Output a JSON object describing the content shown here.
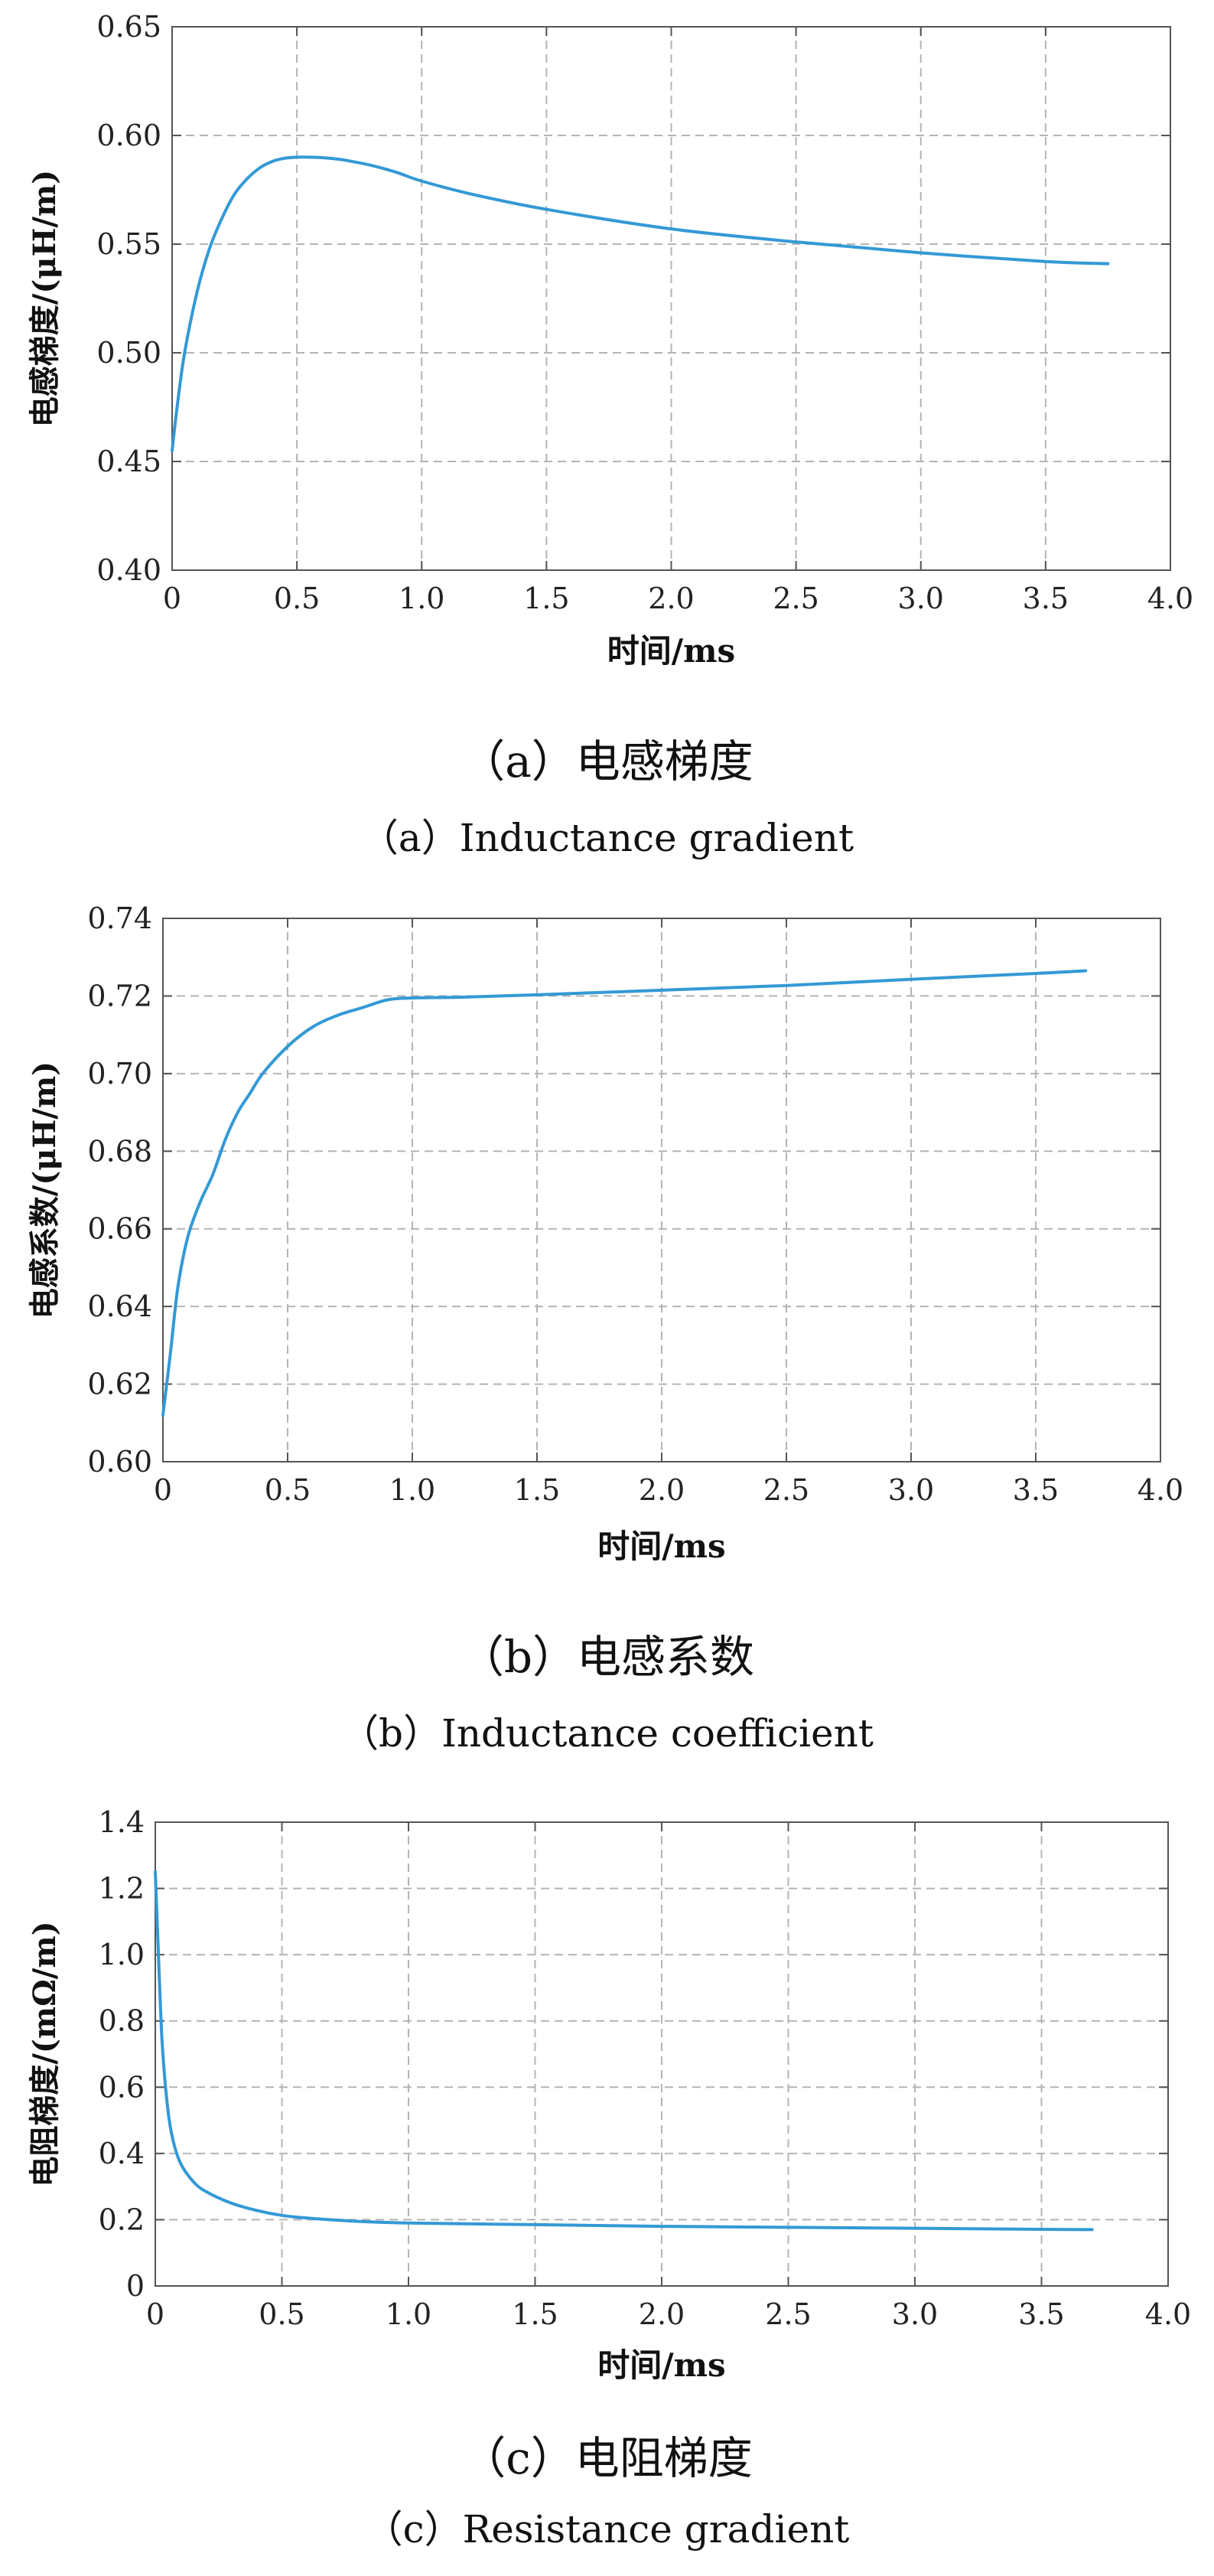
{
  "chart_data": [
    {
      "type": "line",
      "xlabel": "时间/ms",
      "ylabel": "电感梯度/(μH/m)",
      "xlim": [
        0,
        4.0
      ],
      "ylim": [
        0.4,
        0.65
      ],
      "xticks": [
        "0",
        "0.5",
        "1.0",
        "1.5",
        "2.0",
        "2.5",
        "3.0",
        "3.5",
        "4.0"
      ],
      "yticks": [
        "0.40",
        "0.45",
        "0.50",
        "0.55",
        "0.60",
        "0.65"
      ],
      "grid": true,
      "line_color": "#3399d6",
      "x": [
        0,
        0.02,
        0.05,
        0.1,
        0.15,
        0.2,
        0.25,
        0.3,
        0.35,
        0.4,
        0.45,
        0.5,
        0.55,
        0.6,
        0.65,
        0.7,
        0.8,
        0.9,
        1.0,
        1.2,
        1.5,
        2.0,
        2.5,
        3.0,
        3.5,
        3.75
      ],
      "y": [
        0.455,
        0.475,
        0.5,
        0.528,
        0.548,
        0.562,
        0.573,
        0.58,
        0.585,
        0.588,
        0.5895,
        0.59,
        0.59,
        0.5898,
        0.5893,
        0.5885,
        0.5862,
        0.583,
        0.579,
        0.573,
        0.566,
        0.557,
        0.551,
        0.546,
        0.542,
        0.541
      ],
      "caption_cn": "（a）电感梯度",
      "caption_en": "（a）Inductance gradient"
    },
    {
      "type": "line",
      "xlabel": "时间/ms",
      "ylabel": "电感系数/(μH/m)",
      "xlim": [
        0,
        4.0
      ],
      "ylim": [
        0.6,
        0.74
      ],
      "xticks": [
        "0",
        "0.5",
        "1.0",
        "1.5",
        "2.0",
        "2.5",
        "3.0",
        "3.5",
        "4.0"
      ],
      "yticks": [
        "0.60",
        "0.62",
        "0.64",
        "0.66",
        "0.68",
        "0.70",
        "0.72",
        "0.74"
      ],
      "grid": true,
      "line_color": "#3399d6",
      "x": [
        0,
        0.03,
        0.06,
        0.1,
        0.15,
        0.2,
        0.25,
        0.3,
        0.35,
        0.4,
        0.5,
        0.6,
        0.7,
        0.8,
        0.9,
        1.0,
        1.2,
        1.5,
        2.0,
        2.5,
        3.0,
        3.5,
        3.7
      ],
      "y": [
        0.612,
        0.628,
        0.645,
        0.658,
        0.667,
        0.674,
        0.683,
        0.69,
        0.695,
        0.7,
        0.707,
        0.712,
        0.715,
        0.717,
        0.719,
        0.7195,
        0.7197,
        0.7203,
        0.7215,
        0.7227,
        0.7243,
        0.7258,
        0.7265
      ],
      "caption_cn": "（b）电感系数",
      "caption_en": "（b）Inductance coefficient"
    },
    {
      "type": "line",
      "xlabel": "时间/ms",
      "ylabel": "电阻梯度/(mΩ/m)",
      "xlim": [
        0,
        4.0
      ],
      "ylim": [
        0,
        1.4
      ],
      "xticks": [
        "0",
        "0.5",
        "1.0",
        "1.5",
        "2.0",
        "2.5",
        "3.0",
        "3.5",
        "4.0"
      ],
      "yticks": [
        "0",
        "0.2",
        "0.4",
        "0.6",
        "0.8",
        "1.0",
        "1.2",
        "1.4"
      ],
      "grid": true,
      "line_color": "#3399d6",
      "x": [
        0,
        0.01,
        0.02,
        0.03,
        0.05,
        0.07,
        0.1,
        0.15,
        0.2,
        0.3,
        0.4,
        0.5,
        0.6,
        0.8,
        1.0,
        1.5,
        2.0,
        2.5,
        3.0,
        3.5,
        3.7
      ],
      "y": [
        1.25,
        1.05,
        0.85,
        0.7,
        0.53,
        0.44,
        0.37,
        0.315,
        0.285,
        0.25,
        0.228,
        0.213,
        0.205,
        0.195,
        0.19,
        0.185,
        0.18,
        0.177,
        0.174,
        0.171,
        0.17
      ],
      "caption_cn": "（c）电阻梯度",
      "caption_en": "（c）Resistance gradient"
    }
  ]
}
